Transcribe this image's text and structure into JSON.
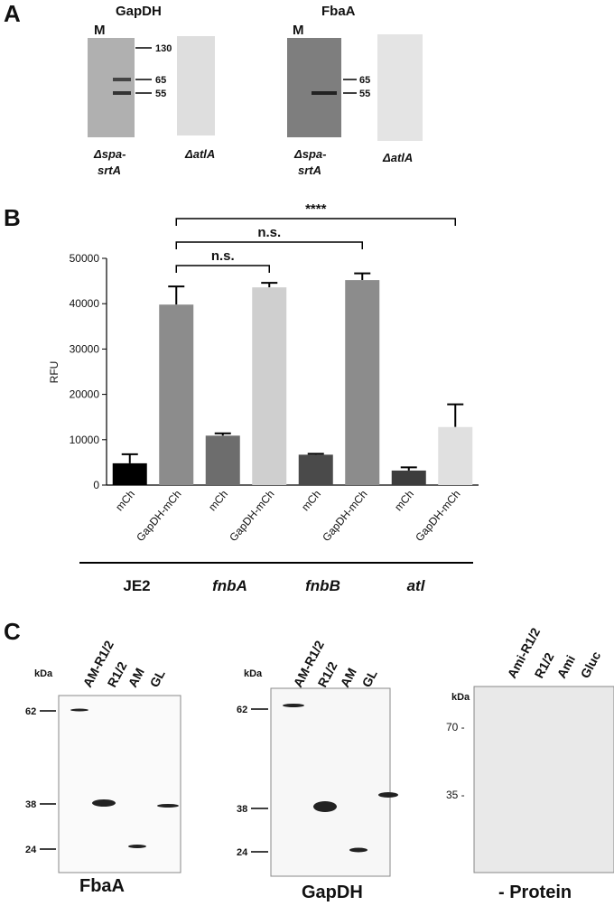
{
  "panel_a": {
    "label": "A",
    "blots": [
      {
        "title": "GapDH",
        "marker_lane": "M",
        "markers": [
          130,
          65,
          55
        ],
        "strains": [
          [
            "Δspa-",
            "srtA"
          ],
          [
            "ΔatlA"
          ]
        ]
      },
      {
        "title": "FbaA",
        "marker_lane": "M",
        "markers": [
          65,
          55
        ],
        "strains": [
          [
            "Δspa-",
            "srtA"
          ],
          [
            "ΔatlA"
          ]
        ]
      }
    ]
  },
  "chart_data": {
    "type": "bar",
    "panel_label": "B",
    "y_label": "RFU",
    "categories": [
      "mCh",
      "GapDH-mCh",
      "mCh",
      "GapDH-mCh",
      "mCh",
      "GapDH-mCh",
      "mCh",
      "GapDH-mCh"
    ],
    "groups": [
      "JE2",
      "fnbA",
      "fnbB",
      "atl"
    ],
    "values": [
      4800,
      39800,
      10900,
      43600,
      6700,
      45200,
      3200,
      12800
    ],
    "errors": [
      2000,
      4000,
      500,
      1000,
      200,
      1500,
      700,
      5000
    ],
    "colors": [
      "#000000",
      "#8c8c8c",
      "#6d6d6d",
      "#cfcfcf",
      "#4a4a4a",
      "#8c8c8c",
      "#3d3d3d",
      "#e0e0e0"
    ],
    "ylim": [
      0,
      50000
    ],
    "yticks": [
      0,
      10000,
      20000,
      30000,
      40000,
      50000
    ],
    "annotations": [
      {
        "text": "n.s.",
        "from": 1,
        "to": 3
      },
      {
        "text": "n.s.",
        "from": 1,
        "to": 5
      },
      {
        "text": "****",
        "from": 1,
        "to": 7
      }
    ]
  },
  "panel_c": {
    "label": "C",
    "blots": [
      {
        "unit": "kDa",
        "lanes": [
          "AM-R1/2",
          "R1/2",
          "AM",
          "GL"
        ],
        "markers": [
          62,
          38,
          24
        ],
        "name": "FbaA"
      },
      {
        "unit": "kDa",
        "lanes": [
          "AM-R1/2",
          "R1/2",
          "AM",
          "GL"
        ],
        "markers": [
          62,
          38,
          24
        ],
        "name": "GapDH"
      },
      {
        "unit": "kDa",
        "lanes": [
          "Ami-R1/2",
          "R1/2",
          "Ami",
          "Gluc"
        ],
        "markers": [
          "70 -",
          "35 -"
        ],
        "name": "- Protein"
      }
    ]
  }
}
